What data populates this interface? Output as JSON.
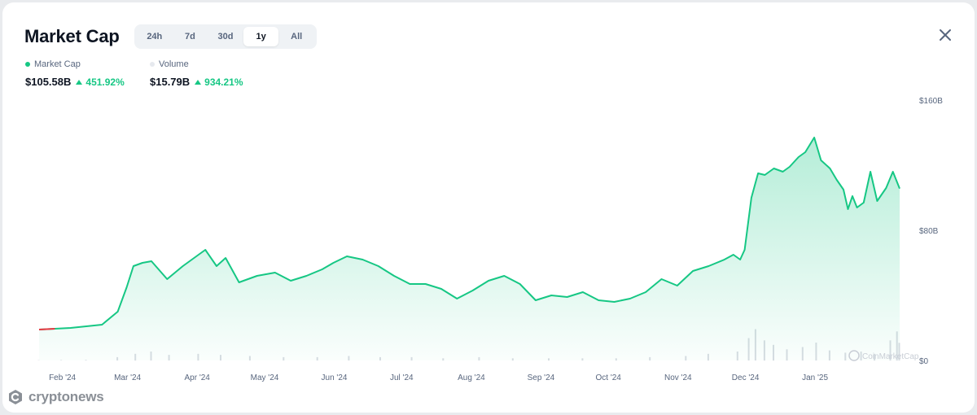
{
  "header": {
    "title": "Market Cap",
    "tabs": [
      "24h",
      "7d",
      "30d",
      "1y",
      "All"
    ],
    "active_tab": "1y"
  },
  "stats": {
    "market_cap": {
      "label": "Market Cap",
      "value": "$105.58B",
      "change": "451.92%",
      "color": "#16c784"
    },
    "volume": {
      "label": "Volume",
      "value": "$15.79B",
      "change": "934.21%",
      "color": "#e6e9ee"
    }
  },
  "watermark": "CoinMarketCap",
  "branding": {
    "name": "cryptonews"
  },
  "icons": {
    "close": "close-icon",
    "change": "triangle-up-icon",
    "brand": "cryptonews-logo-icon"
  },
  "colors": {
    "line": "#16c784",
    "line_down": "#ea3943",
    "volume_bars": "#d9dde3",
    "text_muted": "#58667e"
  },
  "chart_data": {
    "type": "line",
    "title": "Market Cap",
    "y_axis": {
      "ticks": [
        "$160B",
        "$80B",
        "$0"
      ],
      "values": [
        160,
        80,
        0
      ],
      "unit": "B USD",
      "position": "right",
      "ylim": [
        0,
        160
      ]
    },
    "x_axis": {
      "ticks": [
        "Feb '24",
        "Mar '24",
        "Apr '24",
        "May '24",
        "Jun '24",
        "Jul '24",
        "Aug '24",
        "Sep '24",
        "Oct '24",
        "Nov '24",
        "Dec '24",
        "Jan '25"
      ]
    },
    "x_range": [
      "2024-01-22",
      "2025-01-21"
    ],
    "grid": false,
    "series": [
      {
        "name": "Market Cap",
        "points": [
          [
            "2024-01-22",
            19
          ],
          [
            "2024-01-29",
            19.5
          ],
          [
            "2024-02-05",
            20
          ],
          [
            "2024-02-12",
            21
          ],
          [
            "2024-02-19",
            22
          ],
          [
            "2024-02-26",
            30
          ],
          [
            "2024-03-01",
            45
          ],
          [
            "2024-03-04",
            58
          ],
          [
            "2024-03-08",
            60
          ],
          [
            "2024-03-12",
            61
          ],
          [
            "2024-03-19",
            50
          ],
          [
            "2024-03-26",
            58
          ],
          [
            "2024-04-02",
            65
          ],
          [
            "2024-04-05",
            68
          ],
          [
            "2024-04-10",
            58
          ],
          [
            "2024-04-14",
            63
          ],
          [
            "2024-04-20",
            48
          ],
          [
            "2024-04-28",
            52
          ],
          [
            "2024-05-06",
            54
          ],
          [
            "2024-05-13",
            49
          ],
          [
            "2024-05-20",
            52
          ],
          [
            "2024-05-27",
            56
          ],
          [
            "2024-06-01",
            60
          ],
          [
            "2024-06-07",
            64
          ],
          [
            "2024-06-14",
            62
          ],
          [
            "2024-06-21",
            58
          ],
          [
            "2024-06-28",
            52
          ],
          [
            "2024-07-05",
            47
          ],
          [
            "2024-07-12",
            47
          ],
          [
            "2024-07-19",
            44
          ],
          [
            "2024-07-26",
            38
          ],
          [
            "2024-08-02",
            43
          ],
          [
            "2024-08-09",
            49
          ],
          [
            "2024-08-16",
            52
          ],
          [
            "2024-08-23",
            47
          ],
          [
            "2024-08-30",
            37
          ],
          [
            "2024-09-06",
            40
          ],
          [
            "2024-09-13",
            39
          ],
          [
            "2024-09-20",
            42
          ],
          [
            "2024-09-27",
            37
          ],
          [
            "2024-10-04",
            36
          ],
          [
            "2024-10-11",
            38
          ],
          [
            "2024-10-18",
            42
          ],
          [
            "2024-10-25",
            50
          ],
          [
            "2024-11-01",
            46
          ],
          [
            "2024-11-08",
            55
          ],
          [
            "2024-11-15",
            58
          ],
          [
            "2024-11-22",
            62
          ],
          [
            "2024-11-26",
            65
          ],
          [
            "2024-11-29",
            62
          ],
          [
            "2024-12-01",
            68
          ],
          [
            "2024-12-04",
            100
          ],
          [
            "2024-12-07",
            115
          ],
          [
            "2024-12-10",
            114
          ],
          [
            "2024-12-14",
            118
          ],
          [
            "2024-12-18",
            116
          ],
          [
            "2024-12-21",
            119
          ],
          [
            "2024-12-25",
            125
          ],
          [
            "2024-12-28",
            128
          ],
          [
            "2025-01-01",
            137
          ],
          [
            "2025-01-04",
            123
          ],
          [
            "2025-01-08",
            118
          ],
          [
            "2025-01-11",
            111
          ],
          [
            "2025-01-14",
            105
          ],
          [
            "2025-01-16",
            93
          ],
          [
            "2025-01-18",
            101
          ],
          [
            "2025-01-20",
            94
          ],
          [
            "2025-01-23",
            97
          ],
          [
            "2025-01-26",
            116
          ],
          [
            "2025-01-29",
            98
          ],
          [
            "2025-02-02",
            106
          ],
          [
            "2025-02-05",
            116
          ],
          [
            "2025-02-08",
            105.58
          ]
        ]
      },
      {
        "name": "Volume",
        "points": [
          [
            "2024-01-22",
            0.3
          ],
          [
            "2024-02-01",
            0.4
          ],
          [
            "2024-02-12",
            0.6
          ],
          [
            "2024-02-26",
            3
          ],
          [
            "2024-03-05",
            6
          ],
          [
            "2024-03-12",
            8
          ],
          [
            "2024-03-20",
            5
          ],
          [
            "2024-04-02",
            6
          ],
          [
            "2024-04-12",
            5
          ],
          [
            "2024-04-25",
            4
          ],
          [
            "2024-05-10",
            3
          ],
          [
            "2024-05-25",
            3
          ],
          [
            "2024-06-08",
            4
          ],
          [
            "2024-06-22",
            3
          ],
          [
            "2024-07-06",
            3
          ],
          [
            "2024-07-20",
            2
          ],
          [
            "2024-08-05",
            3
          ],
          [
            "2024-08-20",
            2
          ],
          [
            "2024-09-05",
            2
          ],
          [
            "2024-09-20",
            2
          ],
          [
            "2024-10-05",
            2
          ],
          [
            "2024-10-20",
            3
          ],
          [
            "2024-11-05",
            4
          ],
          [
            "2024-11-15",
            6
          ],
          [
            "2024-11-28",
            8
          ],
          [
            "2024-12-03",
            20
          ],
          [
            "2024-12-06",
            28
          ],
          [
            "2024-12-10",
            18
          ],
          [
            "2024-12-14",
            14
          ],
          [
            "2024-12-20",
            10
          ],
          [
            "2024-12-27",
            12
          ],
          [
            "2025-01-02",
            16
          ],
          [
            "2025-01-08",
            9
          ],
          [
            "2025-01-15",
            7
          ],
          [
            "2025-01-22",
            8
          ],
          [
            "2025-01-28",
            6
          ],
          [
            "2025-02-04",
            18
          ],
          [
            "2025-02-07",
            26
          ],
          [
            "2025-02-08",
            15.79
          ]
        ]
      }
    ]
  }
}
